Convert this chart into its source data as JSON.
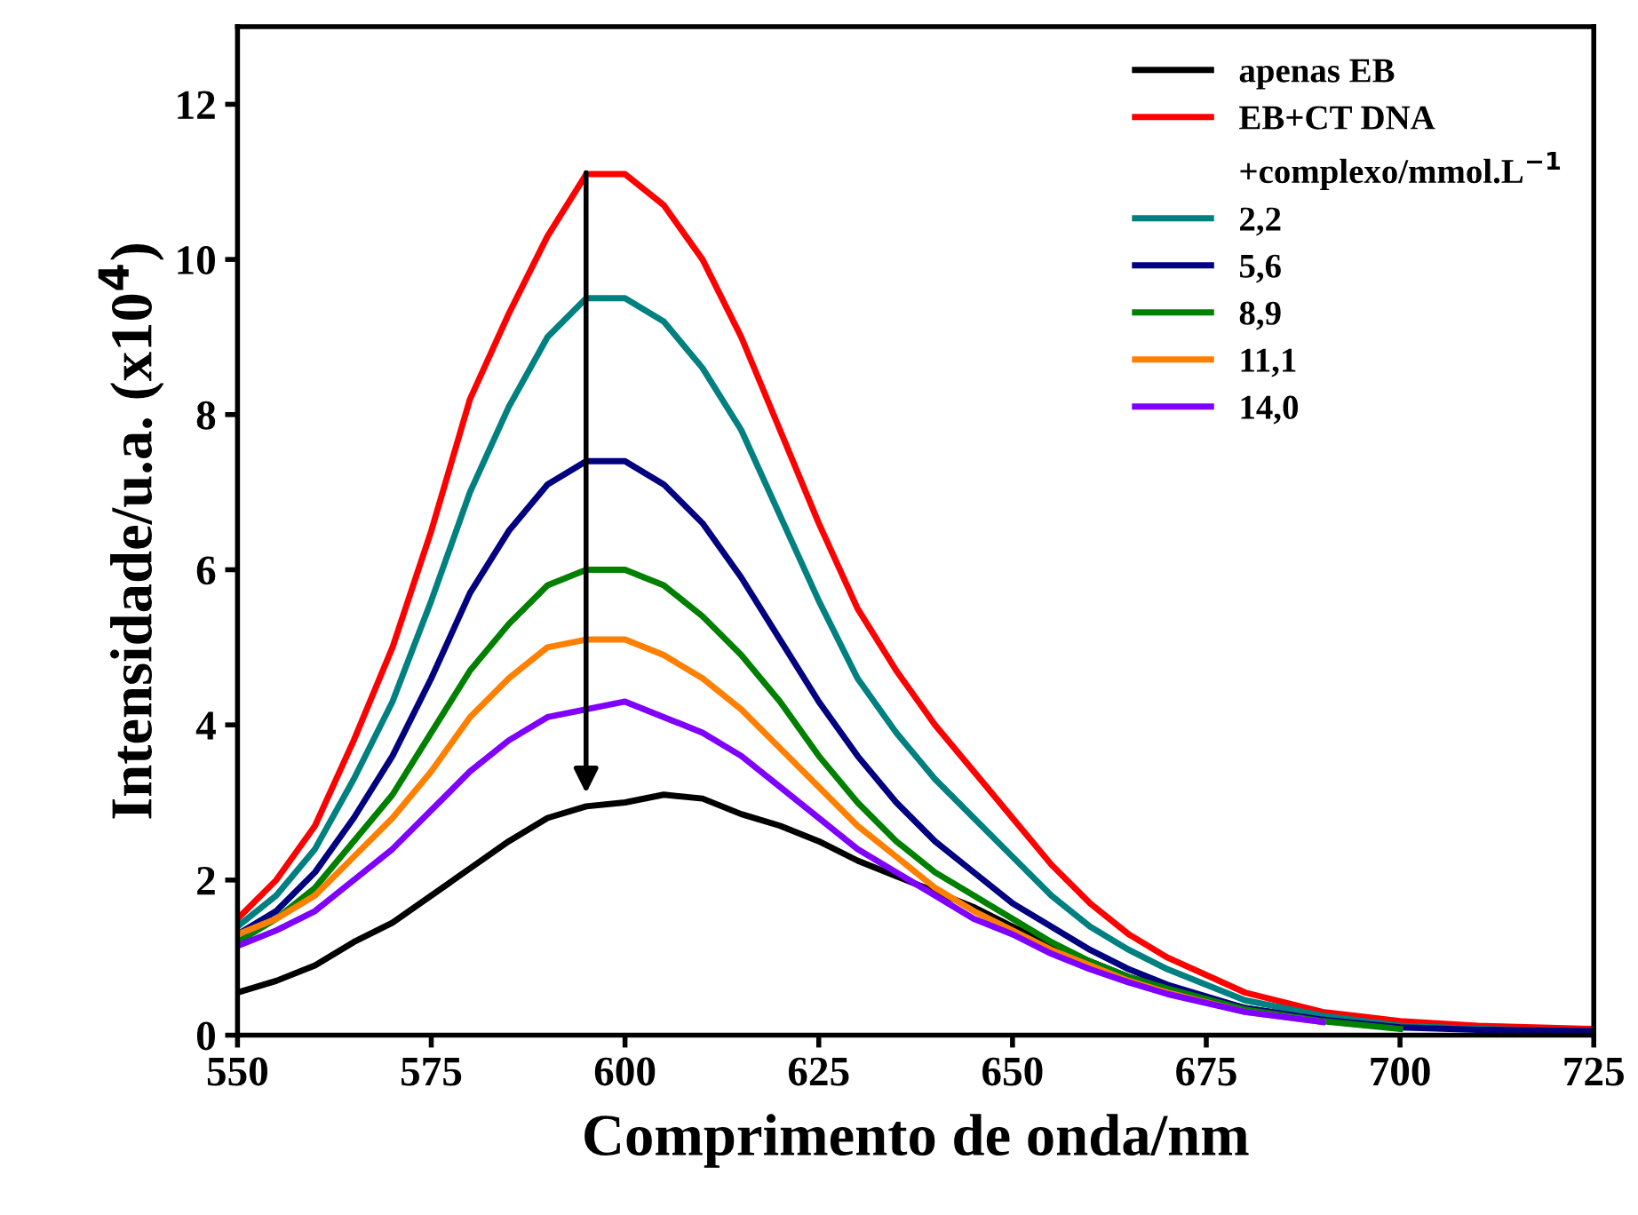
{
  "chart_data": {
    "type": "line",
    "xlabel": "Comprimento de onda/nm",
    "ylabel": "Intensidade/u.a. (x10$^{4}$)",
    "legend_title": "+complexo/mmol.L$^{−1}$",
    "legend": "top right",
    "grid": false,
    "marker": "none",
    "line_style": "solid",
    "x": [
      550,
      555,
      560,
      565,
      570,
      575,
      580,
      585,
      590,
      595,
      600,
      605,
      610,
      615,
      620,
      625,
      630,
      635,
      640,
      645,
      650,
      655,
      660,
      665,
      670,
      680,
      690,
      700,
      710,
      725
    ],
    "xlim": [
      550,
      725
    ],
    "ylim": [
      0,
      13
    ],
    "xticks": [
      550,
      575,
      600,
      625,
      650,
      675,
      700,
      725
    ],
    "yticks": [
      0,
      2,
      4,
      6,
      8,
      10,
      12
    ],
    "series": [
      {
        "name": "apenas EB",
        "color": "#000000",
        "values": [
          0.55,
          0.7,
          0.9,
          1.2,
          1.45,
          1.8,
          2.15,
          2.5,
          2.8,
          2.95,
          3.0,
          3.1,
          3.05,
          2.85,
          2.7,
          2.5,
          2.25,
          2.05,
          1.85,
          1.65,
          1.4,
          1.15,
          0.95,
          0.75,
          0.6,
          0.35,
          0.2,
          0.12,
          0.08,
          0.05
        ]
      },
      {
        "name": "EB+CT DNA",
        "color": "#ff0000",
        "values": [
          1.5,
          2.0,
          2.7,
          3.8,
          5.0,
          6.5,
          8.2,
          9.3,
          10.3,
          11.1,
          11.1,
          10.7,
          10.0,
          9.0,
          7.8,
          6.6,
          5.5,
          4.7,
          4.0,
          3.4,
          2.8,
          2.2,
          1.7,
          1.3,
          1.0,
          0.55,
          0.3,
          0.18,
          0.12,
          0.08
        ]
      },
      {
        "name": "2,2",
        "color": "#008080",
        "values": [
          1.4,
          1.8,
          2.4,
          3.3,
          4.3,
          5.6,
          7.0,
          8.1,
          9.0,
          9.5,
          9.5,
          9.2,
          8.6,
          7.8,
          6.7,
          5.6,
          4.6,
          3.9,
          3.3,
          2.8,
          2.3,
          1.8,
          1.4,
          1.1,
          0.85,
          0.45,
          0.25,
          0.12,
          0.08,
          0.05
        ]
      },
      {
        "name": "5,6",
        "color": "#000080",
        "values": [
          1.3,
          1.6,
          2.1,
          2.8,
          3.6,
          4.6,
          5.7,
          6.5,
          7.1,
          7.4,
          7.4,
          7.1,
          6.6,
          5.9,
          5.1,
          4.3,
          3.6,
          3.0,
          2.5,
          2.1,
          1.7,
          1.4,
          1.1,
          0.85,
          0.65,
          0.35,
          0.2,
          0.1,
          0.07,
          0.05
        ]
      },
      {
        "name": "8,9",
        "color": "#008000",
        "values": [
          1.2,
          1.5,
          1.9,
          2.5,
          3.1,
          3.9,
          4.7,
          5.3,
          5.8,
          6.0,
          6.0,
          5.8,
          5.4,
          4.9,
          4.3,
          3.6,
          3.0,
          2.5,
          2.1,
          1.8,
          1.5,
          1.2,
          0.95,
          0.75,
          0.6,
          0.33,
          0.18,
          0.08,
          null,
          null
        ]
      },
      {
        "name": "11,1",
        "color": "#ff8000",
        "values": [
          1.3,
          1.5,
          1.8,
          2.3,
          2.8,
          3.4,
          4.1,
          4.6,
          5.0,
          5.1,
          5.1,
          4.9,
          4.6,
          4.2,
          3.7,
          3.2,
          2.7,
          2.3,
          1.9,
          1.6,
          1.35,
          1.1,
          0.9,
          0.7,
          0.55,
          0.3,
          0.17,
          null,
          null,
          null
        ]
      },
      {
        "name": "14,0",
        "color": "#8000ff",
        "values": [
          1.15,
          1.35,
          1.6,
          2.0,
          2.4,
          2.9,
          3.4,
          3.8,
          4.1,
          4.2,
          4.3,
          4.1,
          3.9,
          3.6,
          3.2,
          2.8,
          2.4,
          2.1,
          1.8,
          1.5,
          1.3,
          1.05,
          0.85,
          0.68,
          0.53,
          0.3,
          0.17,
          null,
          null,
          null
        ]
      }
    ]
  }
}
